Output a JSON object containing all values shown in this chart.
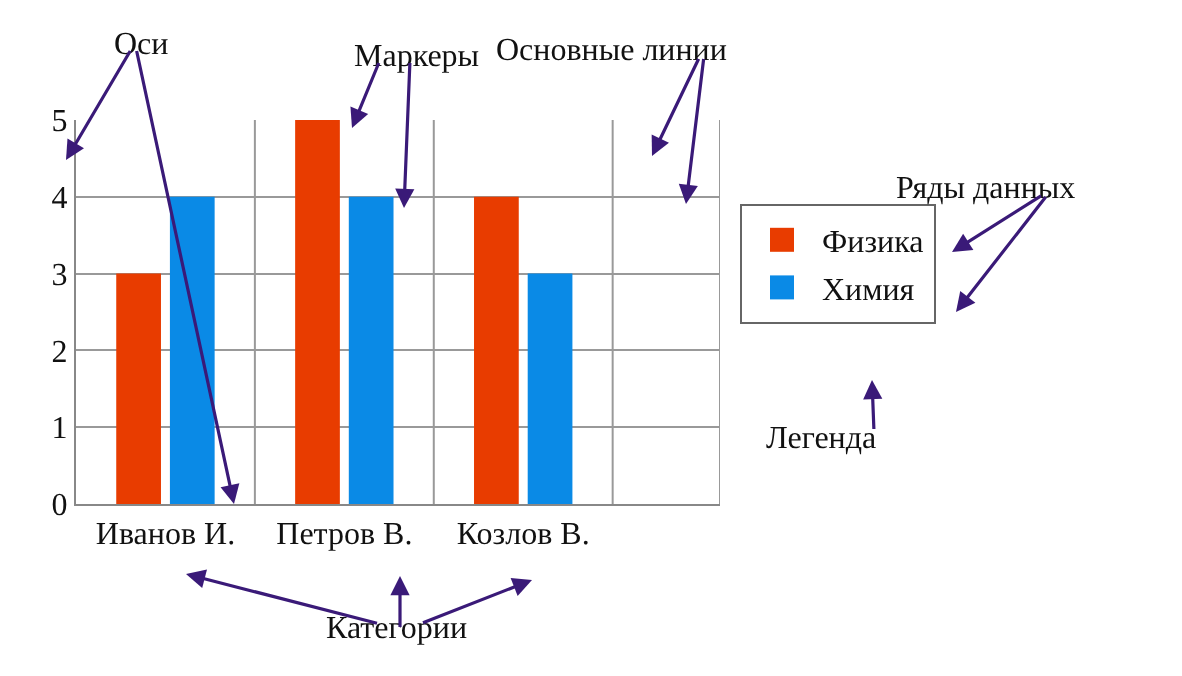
{
  "chart_data": {
    "type": "bar",
    "categories": [
      "Иванов И.",
      "Петров В.",
      "Козлов В."
    ],
    "series": [
      {
        "name": "Физика",
        "color": "#e83c00",
        "values": [
          3,
          5,
          4
        ]
      },
      {
        "name": "Химия",
        "color": "#0a8ae6",
        "values": [
          4,
          4,
          3
        ]
      }
    ],
    "ylim": [
      0,
      5
    ],
    "yticks": [
      0,
      1,
      2,
      3,
      4,
      5
    ],
    "grid": true,
    "legend": "right",
    "annotations": [
      "Оси",
      "Маркеры",
      "Основные линии",
      "Ряды данных",
      "Легенда",
      "Категории"
    ]
  }
}
